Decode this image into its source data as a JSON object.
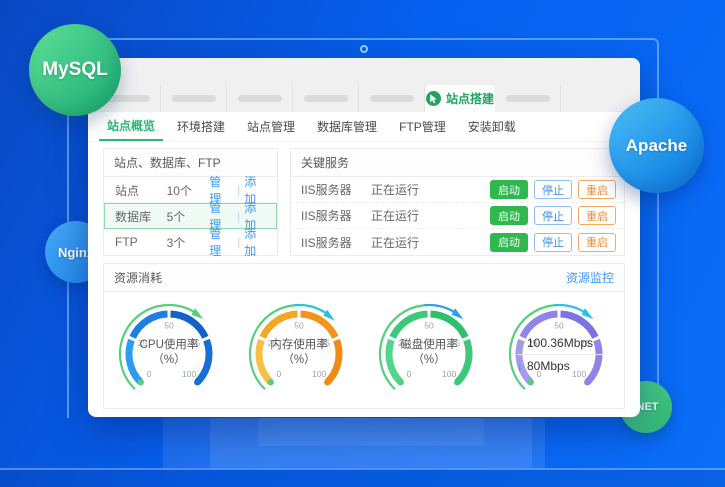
{
  "bubbles": {
    "mysql": "MySQL",
    "apache": "Apache",
    "nginx": "Nginx",
    "dotnet": ".NET"
  },
  "window": {
    "tabs": {
      "placeholders_before": 5,
      "placeholders_after": 1,
      "active_label": "站点搭建"
    }
  },
  "nav": {
    "items": [
      {
        "id": "overview",
        "label": "站点概览",
        "active": true
      },
      {
        "id": "env-setup",
        "label": "环境搭建",
        "active": false
      },
      {
        "id": "site-manage",
        "label": "站点管理",
        "active": false
      },
      {
        "id": "db-manage",
        "label": "数据库管理",
        "active": false
      },
      {
        "id": "ftp-manage",
        "label": "FTP管理",
        "active": false
      },
      {
        "id": "install-uninstall",
        "label": "安装卸载",
        "active": false
      }
    ]
  },
  "overview": {
    "title": "站点、数据库、FTP",
    "manage_label": "管理",
    "add_label": "添加",
    "separator": "|",
    "rows": [
      {
        "id": "sites",
        "label": "站点",
        "count": "10个",
        "highlight": false
      },
      {
        "id": "databases",
        "label": "数据库",
        "count": "5个",
        "highlight": true
      },
      {
        "id": "ftp",
        "label": "FTP",
        "count": "3个",
        "highlight": false
      }
    ]
  },
  "services": {
    "title": "关键服务",
    "start_label": "启动",
    "stop_label": "停止",
    "restart_label": "重启",
    "rows": [
      {
        "name": "IIS服务器",
        "status": "正在运行"
      },
      {
        "name": "IIS服务器",
        "status": "正在运行"
      },
      {
        "name": "IIS服务器",
        "status": "正在运行"
      }
    ]
  },
  "resource": {
    "title": "资源消耗",
    "monitor_link": "资源监控",
    "ticks": [
      "0",
      "25",
      "50",
      "75",
      "100"
    ],
    "gauges": [
      {
        "id": "cpu",
        "label": "CPU使用率",
        "sublabel": "（%）",
        "seg_colors": [
          "#2e9cf0",
          "#1b7fe4",
          "#1262c8",
          "#176fd6"
        ],
        "outer_colors": [
          "#55cf7d",
          "#55cf7d"
        ],
        "pointer_pct": 62
      },
      {
        "id": "memory",
        "label": "内存使用率",
        "sublabel": "（%）",
        "seg_colors": [
          "#f6c044",
          "#f5a623",
          "#f29419",
          "#ef8a14"
        ],
        "outer_colors": [
          "#55cf7d",
          "#2bc0e4"
        ],
        "pointer_pct": 63
      },
      {
        "id": "disk",
        "label": "磁盘使用率",
        "sublabel": "（%）",
        "seg_colors": [
          "#52d68a",
          "#3cc878",
          "#2fbf6e",
          "#3cc878"
        ],
        "outer_colors": [
          "#55cf7d",
          "#2f9fe8"
        ],
        "pointer_pct": 62
      },
      {
        "id": "network",
        "up_arrow": "↑",
        "up_value": "100.36Mbps",
        "down_arrow": "↓",
        "down_value": "80Mbps",
        "seg_colors": [
          "#a49bf0",
          "#8f85e8",
          "#7d72e2",
          "#8f85e8"
        ],
        "outer_colors": [
          "#55cf7d",
          "#2bc0e4"
        ],
        "pointer_pct": 62
      }
    ]
  }
}
